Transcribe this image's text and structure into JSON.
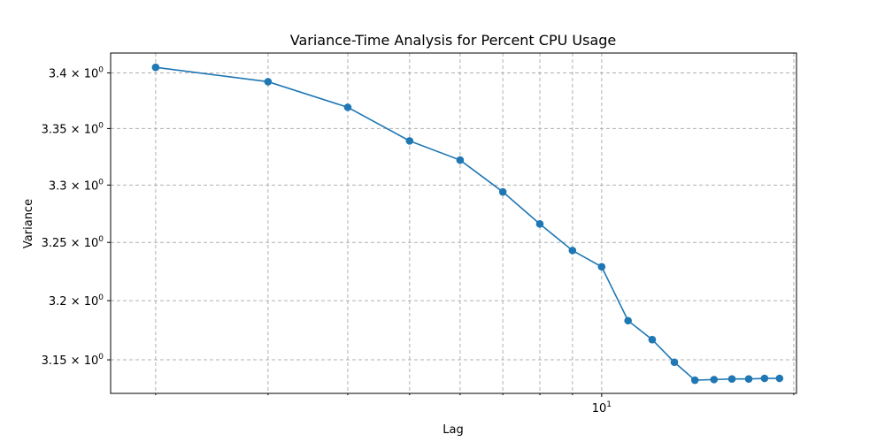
{
  "chart_data": {
    "type": "line",
    "title": "Variance-Time Analysis for Percent CPU Usage",
    "xlabel": "Lag",
    "ylabel": "Variance",
    "x_scale": "log",
    "y_scale": "log",
    "xlim": [
      1.7,
      20.2
    ],
    "ylim": [
      3.122,
      3.418
    ],
    "grid": true,
    "x_major_ticks": [
      10
    ],
    "x_major_tick_labels": [
      "10^1"
    ],
    "x_minor_ticks": [
      2,
      3,
      4,
      5,
      6,
      7,
      8,
      9,
      20
    ],
    "y_ticks": [
      3.15,
      3.2,
      3.25,
      3.3,
      3.35,
      3.4
    ],
    "y_tick_labels": [
      "3.15 × 10^0",
      "3.2 × 10^0",
      "3.25 × 10^0",
      "3.3 × 10^0",
      "3.35 × 10^0",
      "3.4 × 10^0"
    ],
    "series": [
      {
        "color": "#1f77b4",
        "marker": "circle",
        "x": [
          2,
          3,
          4,
          5,
          6,
          7,
          8,
          9,
          10,
          11,
          12,
          13,
          14,
          15,
          16,
          17,
          18,
          19
        ],
        "y": [
          3.405,
          3.392,
          3.369,
          3.339,
          3.322,
          3.294,
          3.266,
          3.243,
          3.229,
          3.183,
          3.167,
          3.148,
          3.133,
          3.1335,
          3.134,
          3.134,
          3.1345,
          3.1345
        ]
      }
    ]
  }
}
